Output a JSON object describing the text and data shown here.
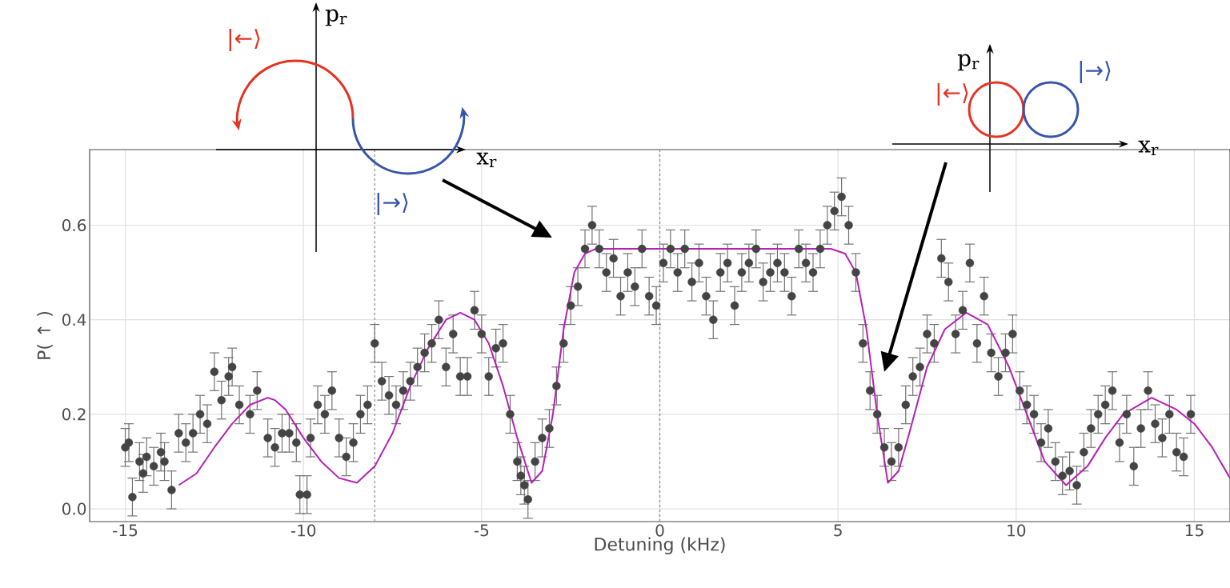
{
  "chart_data": {
    "type": "scatter",
    "xlabel": "Detuning (kHz)",
    "ylabel": "P( ↑ )",
    "xlim": [
      -16,
      16
    ],
    "ylim": [
      -0.027,
      0.76
    ],
    "xticks": [
      -15,
      -10,
      -5,
      0,
      5,
      10,
      15
    ],
    "yticks": [
      {
        "value": 0,
        "label": "0.0"
      },
      {
        "value": 0.2,
        "label": "0.2"
      },
      {
        "value": 0.4,
        "label": "0.4"
      },
      {
        "value": 0.6,
        "label": "0.6"
      }
    ],
    "grid": true,
    "marker": "circle",
    "ref_lines": [
      {
        "axis": "x",
        "value": -8,
        "color": "#888888",
        "line_style": "dashed"
      },
      {
        "axis": "x",
        "value": 0,
        "color": "#888888",
        "line_style": "dashed"
      }
    ],
    "annotations": [
      "p$_{r}$",
      "x$_{r}$",
      "|←⟩",
      "|→⟩",
      "p$_{r}$",
      "x$_{r}$",
      "|←⟩",
      "|→⟩"
    ],
    "series": [
      {
        "color": "#444444",
        "x": [
          -15,
          -14.9,
          -14.8,
          -14.6,
          -14.5,
          -14.4,
          -14.2,
          -14,
          -13.9,
          -13.7,
          -13.5,
          -13.3,
          -13.1,
          -12.9,
          -12.7,
          -12.5,
          -12.3,
          -12.1,
          -12,
          -11.8,
          -11.5,
          -11.3,
          -11,
          -10.8,
          -10.6,
          -10.4,
          -10.2,
          -10.1,
          -9.9,
          -9.8,
          -9.6,
          -9.4,
          -9.2,
          -9,
          -8.8,
          -8.6,
          -8.4,
          -8.2,
          -8,
          -7.8,
          -7.6,
          -7.4,
          -7.2,
          -7,
          -6.8,
          -6.6,
          -6.4,
          -6.2,
          -6,
          -5.8,
          -5.6,
          -5.4,
          -5.2,
          -5,
          -4.8,
          -4.6,
          -4.4,
          -4.2,
          -4,
          -3.9,
          -3.8,
          -3.7,
          -3.5,
          -3.3,
          -3.1,
          -2.9,
          -2.7,
          -2.5,
          -2.3,
          -2.1,
          -1.9,
          -1.7,
          -1.5,
          -1.3,
          -1.1,
          -0.9,
          -0.7,
          -0.5,
          -0.3,
          -0.1,
          0.1,
          0.3,
          0.5,
          0.7,
          0.9,
          1.1,
          1.3,
          1.5,
          1.7,
          1.9,
          2.1,
          2.3,
          2.5,
          2.7,
          2.9,
          3.1,
          3.3,
          3.5,
          3.7,
          3.9,
          4.1,
          4.3,
          4.5,
          4.7,
          4.9,
          5.1,
          5.3,
          5.5,
          5.7,
          5.9,
          6.1,
          6.3,
          6.5,
          6.7,
          6.9,
          7.1,
          7.3,
          7.5,
          7.7,
          7.9,
          8.1,
          8.3,
          8.5,
          8.7,
          8.9,
          9.1,
          9.3,
          9.5,
          9.7,
          9.9,
          10.1,
          10.3,
          10.5,
          10.7,
          10.9,
          11.1,
          11.3,
          11.5,
          11.7,
          11.9,
          12.1,
          12.3,
          12.5,
          12.7,
          12.9,
          13.1,
          13.3,
          13.5,
          13.7,
          13.9,
          14.1,
          14.3,
          14.5,
          14.7,
          14.9
        ],
        "values": [
          0.13,
          0.14,
          0.025,
          0.1,
          0.075,
          0.11,
          0.09,
          0.12,
          0.1,
          0.04,
          0.16,
          0.14,
          0.16,
          0.2,
          0.18,
          0.29,
          0.23,
          0.28,
          0.3,
          0.22,
          0.2,
          0.25,
          0.15,
          0.13,
          0.16,
          0.16,
          0.14,
          0.03,
          0.03,
          0.15,
          0.22,
          0.2,
          0.25,
          0.15,
          0.11,
          0.14,
          0.2,
          0.22,
          0.35,
          0.27,
          0.24,
          0.22,
          0.25,
          0.27,
          0.3,
          0.33,
          0.35,
          0.4,
          0.3,
          0.37,
          0.28,
          0.28,
          0.42,
          0.37,
          0.28,
          0.34,
          0.35,
          0.2,
          0.1,
          0.07,
          0.05,
          0.02,
          0.1,
          0.15,
          0.17,
          0.26,
          0.35,
          0.43,
          0.47,
          0.55,
          0.6,
          0.55,
          0.5,
          0.53,
          0.45,
          0.5,
          0.47,
          0.55,
          0.45,
          0.43,
          0.52,
          0.55,
          0.5,
          0.55,
          0.48,
          0.52,
          0.45,
          0.4,
          0.5,
          0.52,
          0.43,
          0.5,
          0.52,
          0.55,
          0.48,
          0.5,
          0.52,
          0.5,
          0.45,
          0.55,
          0.52,
          0.5,
          0.55,
          0.6,
          0.63,
          0.66,
          0.6,
          0.5,
          0.35,
          0.25,
          0.2,
          0.13,
          0.1,
          0.13,
          0.22,
          0.28,
          0.3,
          0.37,
          0.35,
          0.53,
          0.48,
          0.37,
          0.42,
          0.52,
          0.35,
          0.45,
          0.33,
          0.28,
          0.33,
          0.37,
          0.25,
          0.22,
          0.2,
          0.14,
          0.17,
          0.1,
          0.07,
          0.08,
          0.05,
          0.12,
          0.17,
          0.2,
          0.22,
          0.25,
          0.14,
          0.2,
          0.09,
          0.17,
          0.25,
          0.18,
          0.15,
          0.2,
          0.12,
          0.11,
          0.2
        ],
        "errors": [
          0.04,
          0.04,
          0.04,
          0.04,
          0.04,
          0.04,
          0.04,
          0.04,
          0.04,
          0.04,
          0.04,
          0.04,
          0.04,
          0.04,
          0.04,
          0.04,
          0.04,
          0.04,
          0.04,
          0.04,
          0.04,
          0.04,
          0.04,
          0.04,
          0.04,
          0.04,
          0.04,
          0.04,
          0.04,
          0.04,
          0.04,
          0.04,
          0.04,
          0.04,
          0.04,
          0.04,
          0.04,
          0.04,
          0.04,
          0.04,
          0.04,
          0.04,
          0.04,
          0.04,
          0.04,
          0.04,
          0.04,
          0.04,
          0.04,
          0.04,
          0.04,
          0.04,
          0.04,
          0.04,
          0.04,
          0.04,
          0.04,
          0.04,
          0.04,
          0.04,
          0.04,
          0.04,
          0.04,
          0.04,
          0.04,
          0.04,
          0.04,
          0.04,
          0.04,
          0.04,
          0.04,
          0.04,
          0.04,
          0.04,
          0.04,
          0.04,
          0.04,
          0.04,
          0.04,
          0.04,
          0.04,
          0.04,
          0.04,
          0.04,
          0.04,
          0.04,
          0.04,
          0.04,
          0.04,
          0.04,
          0.04,
          0.04,
          0.04,
          0.04,
          0.04,
          0.04,
          0.04,
          0.04,
          0.04,
          0.04,
          0.04,
          0.04,
          0.04,
          0.04,
          0.04,
          0.04,
          0.04,
          0.04,
          0.04,
          0.04,
          0.04,
          0.04,
          0.04,
          0.04,
          0.04,
          0.04,
          0.04,
          0.04,
          0.04,
          0.04,
          0.04,
          0.04,
          0.04,
          0.04,
          0.04,
          0.04,
          0.04,
          0.04,
          0.04,
          0.04,
          0.04,
          0.04,
          0.04,
          0.04,
          0.04,
          0.04,
          0.04,
          0.04,
          0.04,
          0.04,
          0.04,
          0.04,
          0.04,
          0.04,
          0.04,
          0.04,
          0.04,
          0.04,
          0.04,
          0.04,
          0.04,
          0.04,
          0.04,
          0.04,
          0.04
        ]
      },
      {
        "type": "line",
        "color": "#b620b6",
        "marker": "none",
        "x": [
          -13.5,
          -13,
          -12.5,
          -12,
          -11.5,
          -11,
          -10.8,
          -10.5,
          -10,
          -9.5,
          -9,
          -8.5,
          -8,
          -7.5,
          -7,
          -6.5,
          -6,
          -5.6,
          -5.2,
          -4.8,
          -4.4,
          -4,
          -3.6,
          -3.3,
          -3,
          -2.7,
          -2.4,
          -2.1,
          -1.8,
          -1,
          0,
          1,
          2,
          3,
          4,
          4.8,
          5.2,
          5.5,
          5.8,
          6.1,
          6.4,
          6.7,
          7,
          7.5,
          8,
          8.6,
          9.2,
          9.8,
          10.3,
          10.8,
          11.4,
          12,
          12.5,
          13,
          13.8,
          14.5,
          15,
          15.5,
          16
        ],
        "values": [
          0.05,
          0.075,
          0.13,
          0.18,
          0.22,
          0.235,
          0.23,
          0.21,
          0.15,
          0.1,
          0.065,
          0.055,
          0.09,
          0.16,
          0.26,
          0.34,
          0.4,
          0.415,
          0.4,
          0.35,
          0.26,
          0.15,
          0.055,
          0.08,
          0.2,
          0.38,
          0.5,
          0.54,
          0.55,
          0.55,
          0.55,
          0.55,
          0.55,
          0.55,
          0.55,
          0.55,
          0.54,
          0.5,
          0.38,
          0.2,
          0.055,
          0.08,
          0.16,
          0.3,
          0.38,
          0.415,
          0.39,
          0.3,
          0.2,
          0.1,
          0.05,
          0.09,
          0.15,
          0.2,
          0.235,
          0.21,
          0.18,
          0.13,
          0.065
        ]
      }
    ]
  }
}
